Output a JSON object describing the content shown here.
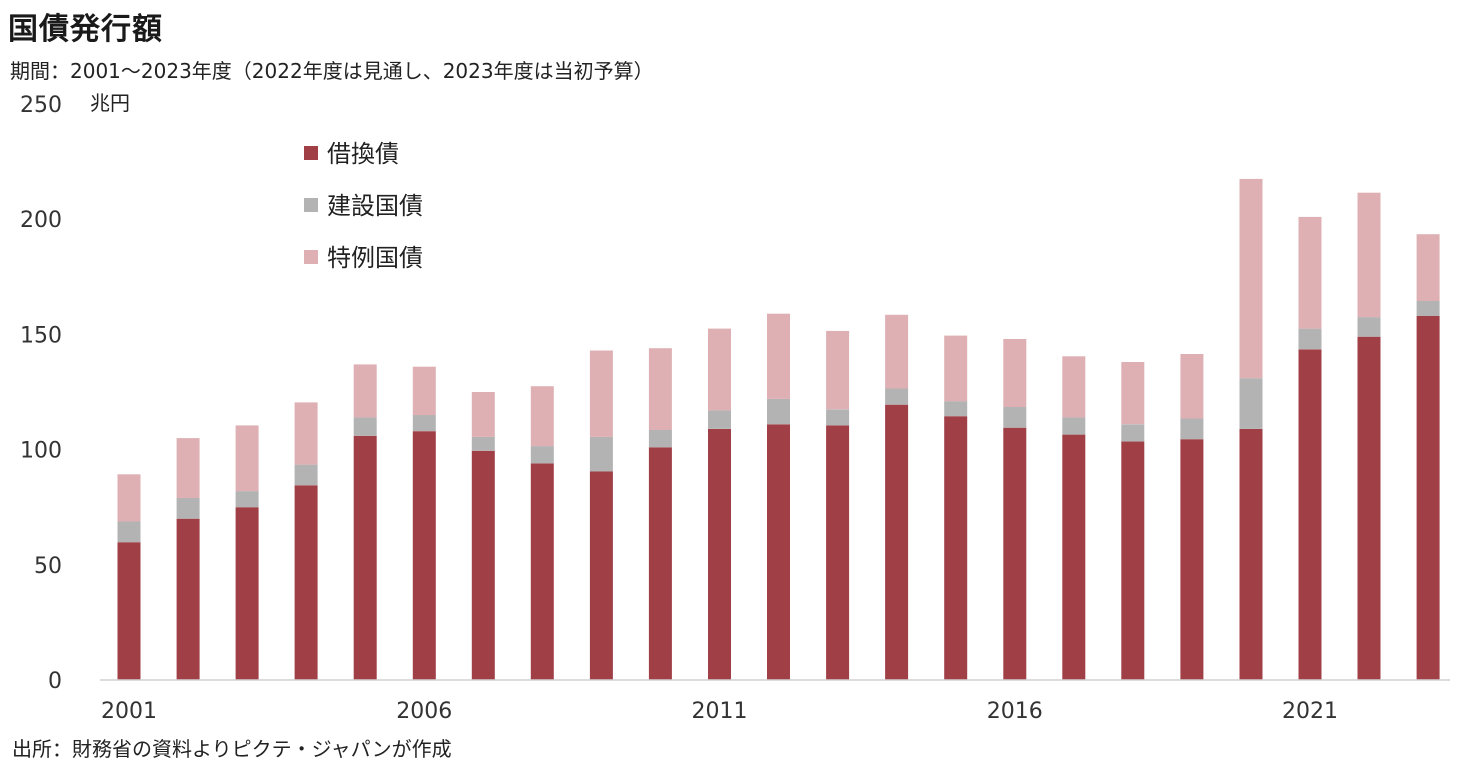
{
  "title": "国債発行額",
  "subtitle": "期間：2001～2023年度（2022年度は見通し、2023年度は当初予算）",
  "source": "出所：財務省の資料よりピクテ・ジャパンが作成",
  "chart_data": {
    "type": "bar",
    "stacked": true,
    "title": "国債発行額",
    "ylabel": "兆円",
    "xlabel": "",
    "ylim": [
      0,
      250
    ],
    "yticks": [
      0,
      50,
      100,
      150,
      200,
      250
    ],
    "categories": [
      "2001",
      "2002",
      "2003",
      "2004",
      "2005",
      "2006",
      "2007",
      "2008",
      "2009",
      "2010",
      "2011",
      "2012",
      "2013",
      "2014",
      "2015",
      "2016",
      "2017",
      "2018",
      "2019",
      "2020",
      "2021",
      "2022",
      "2023"
    ],
    "xtick_labels": [
      "2001",
      "2006",
      "2011",
      "2016",
      "2021"
    ],
    "legend_position": "top-left",
    "series": [
      {
        "name": "借換債",
        "color": "#a13f47",
        "values": [
          59.8,
          70.0,
          75.0,
          84.5,
          106.0,
          108.0,
          99.5,
          94.0,
          90.5,
          101.0,
          109.0,
          111.0,
          110.5,
          119.5,
          114.5,
          109.5,
          106.5,
          103.5,
          104.5,
          109.0,
          143.5,
          149.0,
          158.0
        ]
      },
      {
        "name": "建設国債",
        "color": "#b3b3b3",
        "values": [
          9.0,
          9.0,
          7.0,
          9.0,
          8.0,
          7.0,
          6.0,
          7.5,
          15.0,
          7.5,
          8.0,
          11.0,
          7.0,
          7.0,
          6.5,
          9.0,
          7.5,
          7.5,
          9.0,
          22.0,
          9.0,
          8.5,
          6.5
        ]
      },
      {
        "name": "特例国債",
        "color": "#deb0b4",
        "values": [
          20.5,
          26.0,
          28.5,
          27.0,
          23.0,
          21.0,
          19.5,
          26.0,
          37.5,
          35.5,
          35.5,
          37.0,
          34.0,
          32.0,
          28.5,
          29.5,
          26.5,
          27.0,
          28.0,
          86.5,
          48.5,
          54.0,
          29.0
        ]
      }
    ]
  }
}
